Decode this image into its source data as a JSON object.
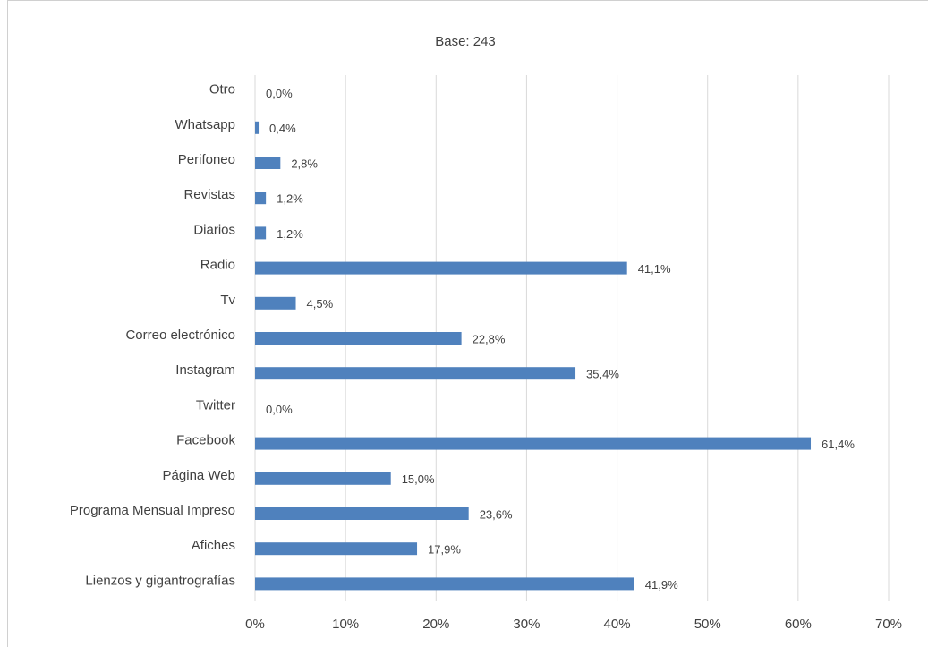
{
  "chart_data": {
    "type": "barh",
    "subtitle": "Base: 243",
    "categories": [
      "Otro",
      "Whatsapp",
      "Perifoneo",
      "Revistas",
      "Diarios",
      "Radio",
      "Tv",
      "Correo electrónico",
      "Instagram",
      "Twitter",
      "Facebook",
      "Página Web",
      "Programa Mensual Impreso",
      "Afiches",
      "Lienzos y gigantrografías"
    ],
    "values": [
      0.0,
      0.4,
      2.8,
      1.2,
      1.2,
      41.1,
      4.5,
      22.8,
      35.4,
      0.0,
      61.4,
      15.0,
      23.6,
      17.9,
      41.9
    ],
    "value_labels": [
      "0,0%",
      "0,4%",
      "2,8%",
      "1,2%",
      "1,2%",
      "41,1%",
      "4,5%",
      "22,8%",
      "35,4%",
      "0,0%",
      "61,4%",
      "15,0%",
      "23,6%",
      "17,9%",
      "41,9%"
    ],
    "color": "#4f81bd",
    "xlim": [
      0,
      70
    ],
    "xticks": [
      {
        "value": 0,
        "label": "0%"
      },
      {
        "value": 10,
        "label": "10%"
      },
      {
        "value": 20,
        "label": "20%"
      },
      {
        "value": 30,
        "label": "30%"
      },
      {
        "value": 40,
        "label": "40%"
      },
      {
        "value": 50,
        "label": "50%"
      },
      {
        "value": 60,
        "label": "60%"
      },
      {
        "value": 70,
        "label": "70%"
      }
    ],
    "grid": true
  }
}
